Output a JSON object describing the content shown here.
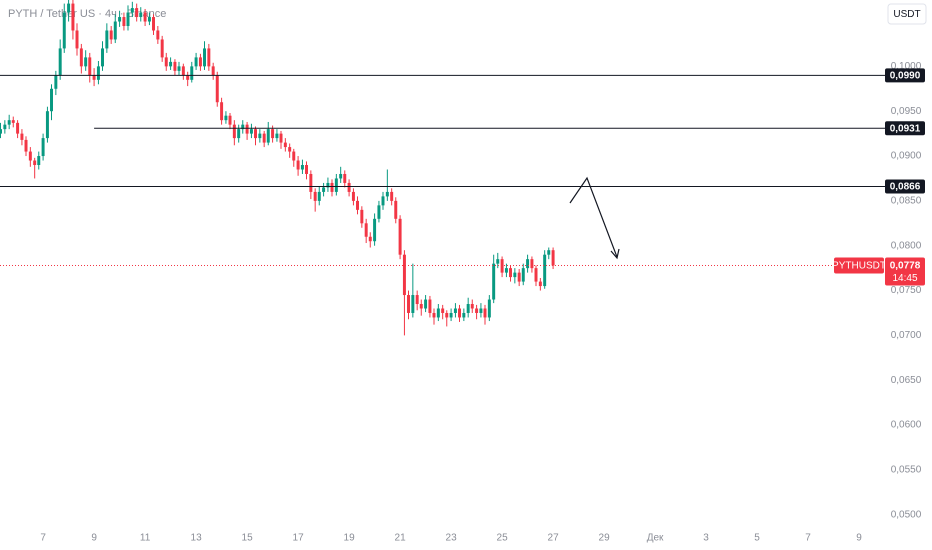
{
  "chart_data": {
    "type": "candlestick",
    "title": "PYTH / Tether US · 4ч · Binance",
    "currency_button": "USDT",
    "symbol": "PYTHUSDT",
    "countdown": "14:45",
    "last_price": {
      "value": 0.0778,
      "label": "0,0778"
    },
    "up_color": "#089981",
    "down_color": "#f23645",
    "levels": [
      {
        "value": 0.099,
        "label": "0,0990"
      },
      {
        "value": 0.0931,
        "label": "0,0931",
        "from": 9
      },
      {
        "value": 0.0866,
        "label": "0,0866"
      }
    ],
    "ylim": [
      0.0483,
      0.1074
    ],
    "yticks": [
      {
        "value": 0.05,
        "label": "0,0500"
      },
      {
        "value": 0.055,
        "label": "0,0550"
      },
      {
        "value": 0.06,
        "label": "0,0600"
      },
      {
        "value": 0.065,
        "label": "0,0650"
      },
      {
        "value": 0.07,
        "label": "0,0700"
      },
      {
        "value": 0.075,
        "label": "0,0750"
      },
      {
        "value": 0.08,
        "label": "0,0800"
      },
      {
        "value": 0.085,
        "label": "0,0850"
      },
      {
        "value": 0.09,
        "label": "0,0900"
      },
      {
        "value": 0.095,
        "label": "0,0950"
      },
      {
        "value": 0.1,
        "label": "0,1000"
      }
    ],
    "xlim": [
      5.31,
      39.82
    ],
    "xticks": [
      7,
      9,
      11,
      13,
      15,
      17,
      19,
      21,
      23,
      25,
      27,
      29,
      {
        "value": 31,
        "label": "Дек"
      },
      {
        "value": 33,
        "label": "3"
      },
      {
        "value": 35,
        "label": "5"
      },
      {
        "value": 37,
        "label": "7"
      },
      {
        "value": 39,
        "label": "9"
      }
    ],
    "candles": [
      [
        5.33,
        0.0925,
        0.0937,
        0.092,
        0.093
      ],
      [
        5.5,
        0.093,
        0.094,
        0.0925,
        0.0935
      ],
      [
        5.67,
        0.0935,
        0.0946,
        0.093,
        0.094
      ],
      [
        5.83,
        0.094,
        0.0944,
        0.0932,
        0.0937
      ],
      [
        6,
        0.0937,
        0.094,
        0.092,
        0.0925
      ],
      [
        6.17,
        0.0925,
        0.093,
        0.0912,
        0.0918
      ],
      [
        6.33,
        0.0918,
        0.0922,
        0.09,
        0.0905
      ],
      [
        6.5,
        0.0905,
        0.091,
        0.0888,
        0.0895
      ],
      [
        6.67,
        0.0895,
        0.0898,
        0.0875,
        0.089
      ],
      [
        6.83,
        0.089,
        0.0905,
        0.0885,
        0.09
      ],
      [
        7,
        0.09,
        0.0925,
        0.0895,
        0.092
      ],
      [
        7.17,
        0.092,
        0.0955,
        0.0915,
        0.095
      ],
      [
        7.33,
        0.095,
        0.098,
        0.094,
        0.0975
      ],
      [
        7.5,
        0.0975,
        0.0995,
        0.0968,
        0.099
      ],
      [
        7.67,
        0.099,
        0.103,
        0.0985,
        0.102
      ],
      [
        7.83,
        0.102,
        0.107,
        0.1015,
        0.106
      ],
      [
        8,
        0.106,
        0.108,
        0.105,
        0.107
      ],
      [
        8.17,
        0.107,
        0.1075,
        0.103,
        0.104
      ],
      [
        8.33,
        0.104,
        0.1048,
        0.1012,
        0.102
      ],
      [
        8.5,
        0.102,
        0.1025,
        0.0992,
        0.1
      ],
      [
        8.67,
        0.1,
        0.1018,
        0.0995,
        0.101
      ],
      [
        8.83,
        0.101,
        0.1015,
        0.0982,
        0.099
      ],
      [
        9,
        0.099,
        0.0998,
        0.0978,
        0.0985
      ],
      [
        9.17,
        0.0985,
        0.1006,
        0.098,
        0.1
      ],
      [
        9.33,
        0.1,
        0.1028,
        0.0995,
        0.102
      ],
      [
        9.5,
        0.102,
        0.1048,
        0.1015,
        0.104
      ],
      [
        9.67,
        0.104,
        0.1045,
        0.1025,
        0.103
      ],
      [
        9.83,
        0.103,
        0.1058,
        0.1026,
        0.105
      ],
      [
        10,
        0.105,
        0.1062,
        0.1044,
        0.1055
      ],
      [
        10.17,
        0.1055,
        0.106,
        0.104,
        0.1045
      ],
      [
        10.33,
        0.1045,
        0.1068,
        0.104,
        0.106
      ],
      [
        10.5,
        0.106,
        0.1072,
        0.1055,
        0.1065
      ],
      [
        10.67,
        0.1065,
        0.107,
        0.105,
        0.1055
      ],
      [
        10.83,
        0.1055,
        0.1066,
        0.105,
        0.106
      ],
      [
        11,
        0.106,
        0.1064,
        0.1045,
        0.105
      ],
      [
        11.17,
        0.105,
        0.106,
        0.1046,
        0.1055
      ],
      [
        11.33,
        0.1055,
        0.1058,
        0.1035,
        0.104
      ],
      [
        11.5,
        0.104,
        0.1045,
        0.1025,
        0.103
      ],
      [
        11.67,
        0.103,
        0.1034,
        0.1005,
        0.101
      ],
      [
        11.83,
        0.101,
        0.1015,
        0.0995,
        0.1
      ],
      [
        12,
        0.1,
        0.101,
        0.0996,
        0.1005
      ],
      [
        12.17,
        0.1005,
        0.1008,
        0.099,
        0.0995
      ],
      [
        12.33,
        0.0995,
        0.1005,
        0.099,
        0.1
      ],
      [
        12.5,
        0.1,
        0.1003,
        0.0985,
        0.099
      ],
      [
        12.67,
        0.099,
        0.0994,
        0.0978,
        0.0985
      ],
      [
        12.83,
        0.0985,
        0.1005,
        0.0982,
        0.1
      ],
      [
        13,
        0.1,
        0.1015,
        0.0996,
        0.101
      ],
      [
        13.17,
        0.101,
        0.1014,
        0.0995,
        0.1
      ],
      [
        13.33,
        0.1,
        0.1028,
        0.0996,
        0.102
      ],
      [
        13.5,
        0.102,
        0.1025,
        0.0995,
        0.1
      ],
      [
        13.67,
        0.1,
        0.1004,
        0.0985,
        0.099
      ],
      [
        13.83,
        0.099,
        0.0994,
        0.0955,
        0.096
      ],
      [
        14,
        0.096,
        0.0965,
        0.0935,
        0.094
      ],
      [
        14.17,
        0.094,
        0.095,
        0.0936,
        0.0945
      ],
      [
        14.33,
        0.0945,
        0.0948,
        0.093,
        0.0935
      ],
      [
        14.5,
        0.0935,
        0.094,
        0.0912,
        0.092
      ],
      [
        14.67,
        0.092,
        0.0935,
        0.0915,
        0.093
      ],
      [
        14.83,
        0.093,
        0.094,
        0.0925,
        0.0935
      ],
      [
        15,
        0.0935,
        0.0938,
        0.0918,
        0.0925
      ],
      [
        15.17,
        0.0925,
        0.0936,
        0.092,
        0.093
      ],
      [
        15.33,
        0.093,
        0.0933,
        0.0912,
        0.092
      ],
      [
        15.5,
        0.092,
        0.093,
        0.0915,
        0.0925
      ],
      [
        15.67,
        0.0925,
        0.0928,
        0.091,
        0.0915
      ],
      [
        15.83,
        0.0915,
        0.0938,
        0.0912,
        0.093
      ],
      [
        16,
        0.093,
        0.0934,
        0.0915,
        0.092
      ],
      [
        16.17,
        0.092,
        0.093,
        0.0916,
        0.0925
      ],
      [
        16.33,
        0.0925,
        0.0928,
        0.0908,
        0.0915
      ],
      [
        16.5,
        0.0915,
        0.092,
        0.0905,
        0.091
      ],
      [
        16.67,
        0.091,
        0.0914,
        0.0898,
        0.0905
      ],
      [
        16.83,
        0.0905,
        0.0908,
        0.0888,
        0.0895
      ],
      [
        17,
        0.0895,
        0.09,
        0.0878,
        0.0885
      ],
      [
        17.17,
        0.0885,
        0.0896,
        0.088,
        0.089
      ],
      [
        17.33,
        0.089,
        0.0894,
        0.0874,
        0.088
      ],
      [
        17.5,
        0.088,
        0.0884,
        0.0852,
        0.086
      ],
      [
        17.67,
        0.086,
        0.0864,
        0.0838,
        0.085
      ],
      [
        17.83,
        0.085,
        0.0866,
        0.0845,
        0.086
      ],
      [
        18,
        0.086,
        0.087,
        0.0855,
        0.0865
      ],
      [
        18.17,
        0.0865,
        0.0876,
        0.086,
        0.087
      ],
      [
        18.33,
        0.087,
        0.0874,
        0.0855,
        0.086
      ],
      [
        18.5,
        0.086,
        0.088,
        0.0856,
        0.0875
      ],
      [
        18.67,
        0.0875,
        0.0888,
        0.087,
        0.088
      ],
      [
        18.83,
        0.088,
        0.0884,
        0.0865,
        0.087
      ],
      [
        19,
        0.087,
        0.0874,
        0.0855,
        0.086
      ],
      [
        19.17,
        0.086,
        0.0864,
        0.0845,
        0.085
      ],
      [
        19.33,
        0.085,
        0.0855,
        0.0835,
        0.084
      ],
      [
        19.5,
        0.084,
        0.0844,
        0.082,
        0.0825
      ],
      [
        19.67,
        0.0825,
        0.083,
        0.0803,
        0.081
      ],
      [
        19.83,
        0.081,
        0.0815,
        0.0798,
        0.0805
      ],
      [
        20,
        0.0805,
        0.0836,
        0.08,
        0.083
      ],
      [
        20.17,
        0.083,
        0.085,
        0.0826,
        0.0845
      ],
      [
        20.33,
        0.0845,
        0.086,
        0.084,
        0.0855
      ],
      [
        20.5,
        0.0855,
        0.0885,
        0.085,
        0.086
      ],
      [
        20.67,
        0.086,
        0.0864,
        0.0845,
        0.085
      ],
      [
        20.83,
        0.085,
        0.0854,
        0.0825,
        0.083
      ],
      [
        21,
        0.083,
        0.0834,
        0.0785,
        0.079
      ],
      [
        21.17,
        0.079,
        0.0795,
        0.07,
        0.0745
      ],
      [
        21.33,
        0.0745,
        0.075,
        0.0718,
        0.0725
      ],
      [
        21.5,
        0.0725,
        0.078,
        0.072,
        0.0745
      ],
      [
        21.67,
        0.0745,
        0.075,
        0.0728,
        0.0735
      ],
      [
        21.83,
        0.0735,
        0.074,
        0.0722,
        0.073
      ],
      [
        22,
        0.073,
        0.0745,
        0.0726,
        0.074
      ],
      [
        22.17,
        0.074,
        0.0744,
        0.072,
        0.0725
      ],
      [
        22.33,
        0.0725,
        0.073,
        0.0712,
        0.072
      ],
      [
        22.5,
        0.072,
        0.0735,
        0.0716,
        0.073
      ],
      [
        22.67,
        0.073,
        0.0734,
        0.0718,
        0.0725
      ],
      [
        22.83,
        0.0725,
        0.0728,
        0.071,
        0.072
      ],
      [
        23,
        0.072,
        0.073,
        0.0716,
        0.0725
      ],
      [
        23.17,
        0.0725,
        0.0736,
        0.072,
        0.073
      ],
      [
        23.33,
        0.073,
        0.0734,
        0.0715,
        0.072
      ],
      [
        23.5,
        0.072,
        0.073,
        0.0716,
        0.0725
      ],
      [
        23.67,
        0.0725,
        0.0742,
        0.072,
        0.0735
      ],
      [
        23.83,
        0.0735,
        0.074,
        0.0725,
        0.073
      ],
      [
        24,
        0.073,
        0.0734,
        0.0718,
        0.0725
      ],
      [
        24.17,
        0.0725,
        0.0736,
        0.072,
        0.073
      ],
      [
        24.33,
        0.073,
        0.0734,
        0.0712,
        0.072
      ],
      [
        24.5,
        0.072,
        0.0745,
        0.0716,
        0.074
      ],
      [
        24.67,
        0.074,
        0.079,
        0.0736,
        0.078
      ],
      [
        24.83,
        0.078,
        0.0792,
        0.0775,
        0.0785
      ],
      [
        25,
        0.0785,
        0.0788,
        0.0765,
        0.077
      ],
      [
        25.17,
        0.077,
        0.078,
        0.0765,
        0.0775
      ],
      [
        25.33,
        0.0775,
        0.0778,
        0.076,
        0.0765
      ],
      [
        25.5,
        0.0765,
        0.0775,
        0.0758,
        0.077
      ],
      [
        25.67,
        0.077,
        0.0774,
        0.0755,
        0.076
      ],
      [
        25.83,
        0.076,
        0.078,
        0.0756,
        0.0775
      ],
      [
        26,
        0.0775,
        0.079,
        0.077,
        0.0785
      ],
      [
        26.17,
        0.0785,
        0.0788,
        0.077,
        0.0775
      ],
      [
        26.33,
        0.0775,
        0.0778,
        0.0755,
        0.076
      ],
      [
        26.5,
        0.076,
        0.0764,
        0.075,
        0.0755
      ],
      [
        26.67,
        0.0755,
        0.0795,
        0.0752,
        0.079
      ],
      [
        26.83,
        0.079,
        0.0798,
        0.0785,
        0.0795
      ],
      [
        27,
        0.0795,
        0.0798,
        0.0774,
        0.0778
      ]
    ]
  }
}
